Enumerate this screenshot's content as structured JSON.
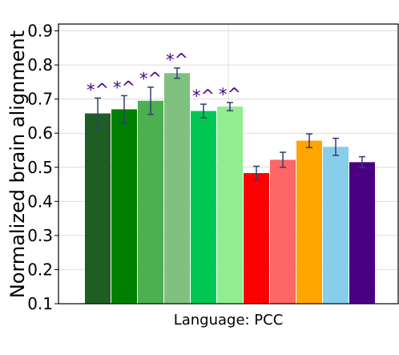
{
  "chart_data": {
    "type": "bar",
    "xlabel": "Language: PCC",
    "ylabel": "Normalized brain alignment",
    "ylim": [
      0.1,
      0.92
    ],
    "yticks": [
      "0.1",
      "0.2",
      "0.3",
      "0.4",
      "0.5",
      "0.6",
      "0.7",
      "0.8",
      "0.9"
    ],
    "grid": true,
    "significance_color": "#4b0082",
    "bars": [
      {
        "value": 0.658,
        "error": 0.045,
        "color": "#1e5e24",
        "annotation": "*^"
      },
      {
        "value": 0.67,
        "error": 0.04,
        "color": "#008000",
        "annotation": "*^"
      },
      {
        "value": 0.695,
        "error": 0.04,
        "color": "#4caf50",
        "annotation": "*^"
      },
      {
        "value": 0.776,
        "error": 0.015,
        "color": "#80c080",
        "annotation": "*^"
      },
      {
        "value": 0.665,
        "error": 0.02,
        "color": "#00c853",
        "annotation": "*^"
      },
      {
        "value": 0.678,
        "error": 0.012,
        "color": "#90ee90",
        "annotation": "*^"
      },
      {
        "value": 0.483,
        "error": 0.02,
        "color": "#ff0000",
        "annotation": ""
      },
      {
        "value": 0.522,
        "error": 0.022,
        "color": "#ff6666",
        "annotation": ""
      },
      {
        "value": 0.578,
        "error": 0.02,
        "color": "#ffa500",
        "annotation": ""
      },
      {
        "value": 0.56,
        "error": 0.025,
        "color": "#87ceeb",
        "annotation": ""
      },
      {
        "value": 0.515,
        "error": 0.016,
        "color": "#4b0082",
        "annotation": ""
      }
    ]
  }
}
